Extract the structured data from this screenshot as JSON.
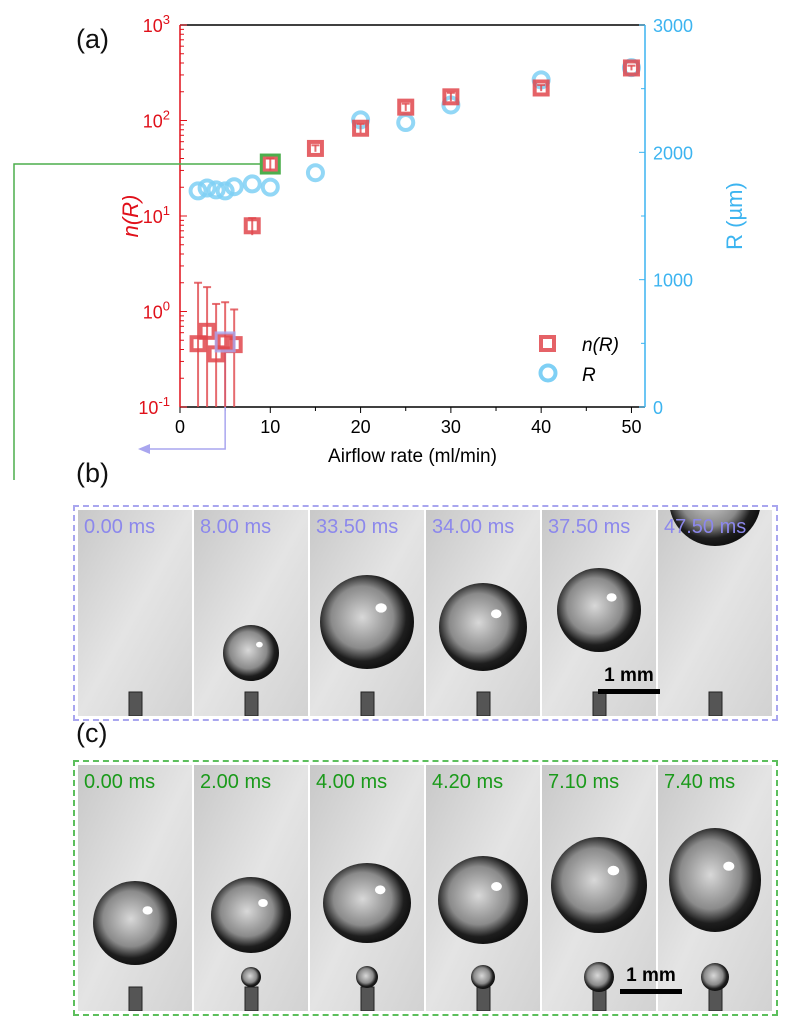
{
  "panel_labels": {
    "a": "(a)",
    "b": "(b)",
    "c": "(c)"
  },
  "chart_data": {
    "type": "scatter",
    "xlabel": "Airflow rate (ml/min)",
    "ylabel_left": "n(R)",
    "ylabel_right": "R (µm)",
    "xlim": [
      0,
      51.5
    ],
    "ylim_left": [
      0.1,
      1000
    ],
    "yscale_left": "log",
    "ylim_right": [
      0,
      3000
    ],
    "x_ticks": [
      "0",
      "10",
      "20",
      "30",
      "40",
      "50"
    ],
    "y_left_ticks": [
      "10-1",
      "100",
      "101",
      "102",
      "103"
    ],
    "y_right_ticks": [
      "0",
      "1000",
      "2000",
      "3000"
    ],
    "legend": {
      "placement": "bottom-right",
      "entries": [
        "n(R)",
        "R"
      ]
    },
    "colors": {
      "n": "#e0474c",
      "R": "#7fd0f5",
      "left_axis": "#e0101a",
      "right_axis": "#3cb4f0",
      "highlight_b": "#a9a6ef",
      "highlight_c": "#4cae4c"
    },
    "series": [
      {
        "name": "n(R)",
        "axis": "left",
        "x": [
          2,
          3,
          4,
          5,
          6,
          8,
          10,
          15,
          20,
          25,
          30,
          40,
          50
        ],
        "y": [
          0.46,
          0.62,
          0.36,
          0.48,
          0.45,
          7.9,
          35,
          51,
          83,
          138,
          177,
          219,
          355
        ],
        "err_upper": [
          2.0,
          1.8,
          1.2,
          1.25,
          1.05,
          9.5,
          40,
          55,
          92,
          150,
          195,
          235,
          375
        ]
      },
      {
        "name": "R",
        "axis": "right",
        "x": [
          2,
          3,
          4,
          5,
          6,
          8,
          10,
          15,
          20,
          25,
          30,
          40,
          50
        ],
        "y": [
          1697,
          1720,
          1705,
          1697,
          1730,
          1752,
          1727,
          1840,
          2255,
          2234,
          2372,
          2569,
          2665
        ]
      }
    ],
    "highlighted": {
      "b_x": 5,
      "c_x": 10
    }
  },
  "panel_b": {
    "frames": [
      "0.00 ms",
      "8.00 ms",
      "33.50 ms",
      "34.00 ms",
      "37.50 ms",
      "47.50 ms"
    ],
    "scale": "1 mm"
  },
  "panel_c": {
    "frames": [
      "0.00 ms",
      "2.00 ms",
      "4.00 ms",
      "4.20 ms",
      "7.10 ms",
      "7.40 ms"
    ],
    "scale": "1 mm"
  }
}
